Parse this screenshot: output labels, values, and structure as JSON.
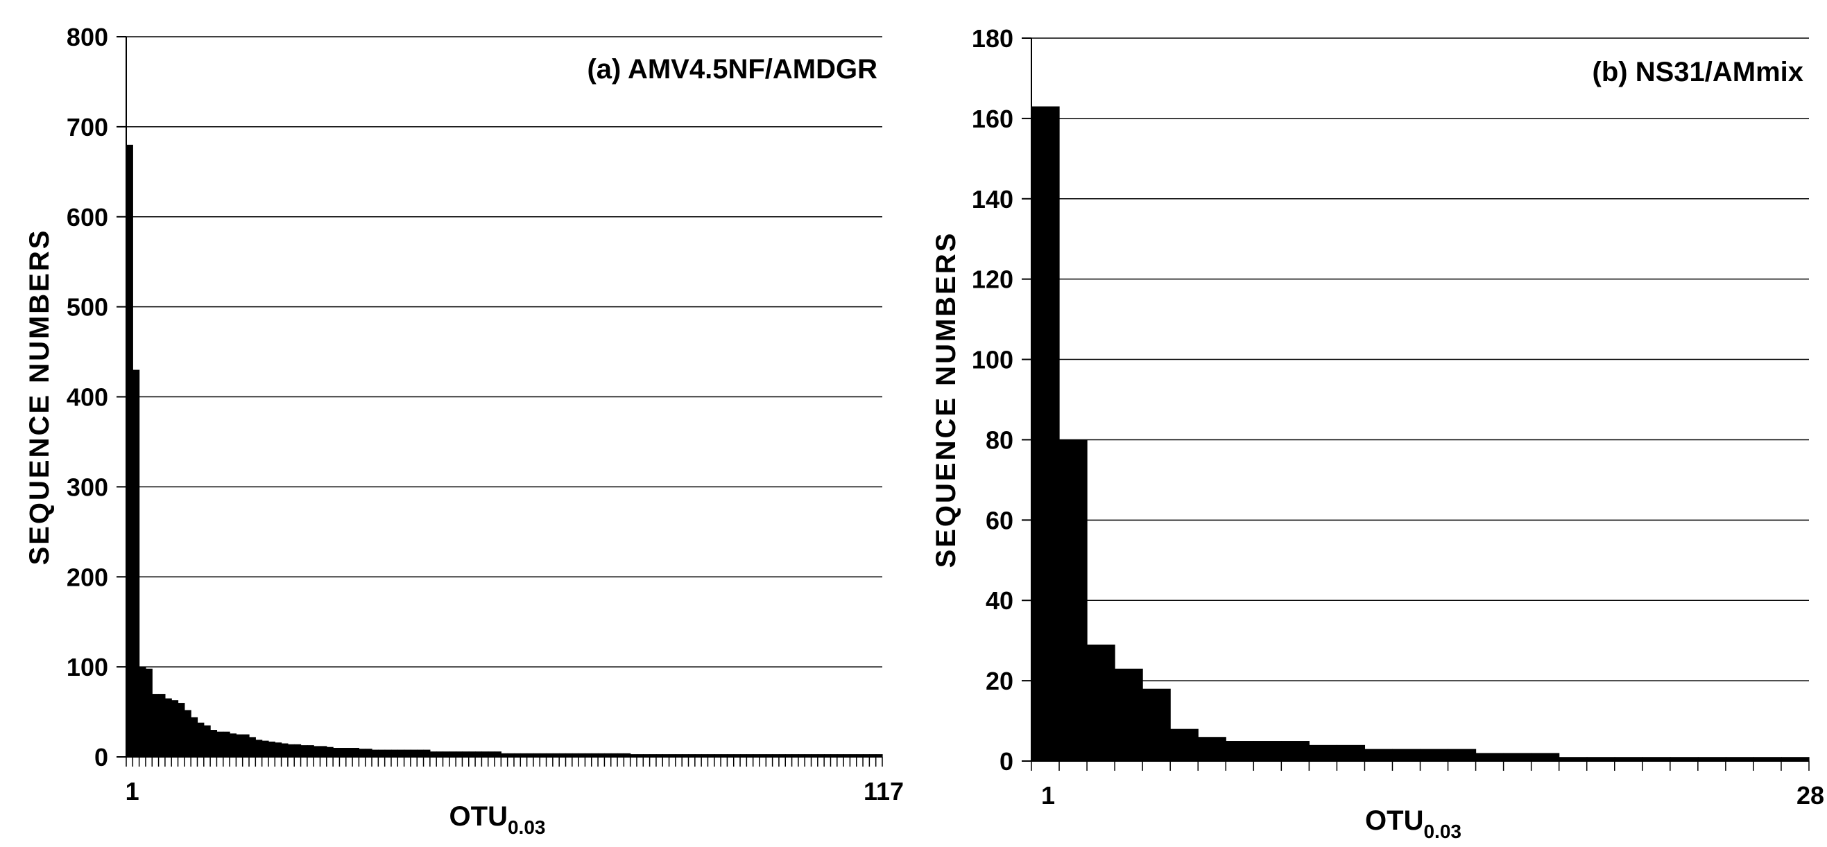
{
  "chart_data": [
    {
      "type": "bar",
      "title": "(a) AMV4.5NF/AMDGR",
      "ylabel": "SEQUENCE NUMBERS",
      "xlabel_main": "OTU",
      "xlabel_sub": "0.03",
      "ylim": [
        0,
        800
      ],
      "yticks": [
        "0",
        "100",
        "200",
        "300",
        "400",
        "500",
        "600",
        "700",
        "800"
      ],
      "x_first_label": "1",
      "x_last_label": "117",
      "grid": true,
      "values": [
        680,
        430,
        100,
        98,
        70,
        70,
        65,
        63,
        60,
        52,
        44,
        38,
        35,
        30,
        28,
        28,
        26,
        25,
        25,
        22,
        19,
        18,
        17,
        16,
        15,
        14,
        14,
        13,
        13,
        12,
        12,
        11,
        10,
        10,
        10,
        10,
        9,
        9,
        8,
        8,
        8,
        8,
        8,
        8,
        8,
        8,
        8,
        6,
        6,
        6,
        6,
        6,
        6,
        6,
        6,
        6,
        6,
        6,
        4,
        4,
        4,
        4,
        4,
        4,
        4,
        4,
        4,
        4,
        4,
        4,
        4,
        4,
        4,
        4,
        4,
        4,
        4,
        4,
        3,
        3,
        3,
        3,
        3,
        3,
        3,
        3,
        3,
        3,
        3,
        3,
        3,
        3,
        3,
        3,
        3,
        3,
        3,
        3,
        3,
        3,
        3,
        3,
        3,
        3,
        3,
        3,
        3,
        3,
        3,
        3,
        3,
        3,
        3,
        3,
        3,
        3,
        3
      ]
    },
    {
      "type": "bar",
      "title": "(b) NS31/AMmix",
      "ylabel": "SEQUENCE NUMBERS",
      "xlabel_main": "OTU",
      "xlabel_sub": "0.03",
      "ylim": [
        0,
        180
      ],
      "yticks": [
        "0",
        "20",
        "40",
        "60",
        "80",
        "100",
        "120",
        "140",
        "160",
        "180"
      ],
      "x_first_label": "1",
      "x_last_label": "28",
      "grid": true,
      "values": [
        163,
        80,
        29,
        23,
        18,
        8,
        6,
        5,
        5,
        5,
        4,
        4,
        3,
        3,
        3,
        3,
        2,
        2,
        2,
        1,
        1,
        1,
        1,
        1,
        1,
        1,
        1,
        1
      ]
    }
  ]
}
